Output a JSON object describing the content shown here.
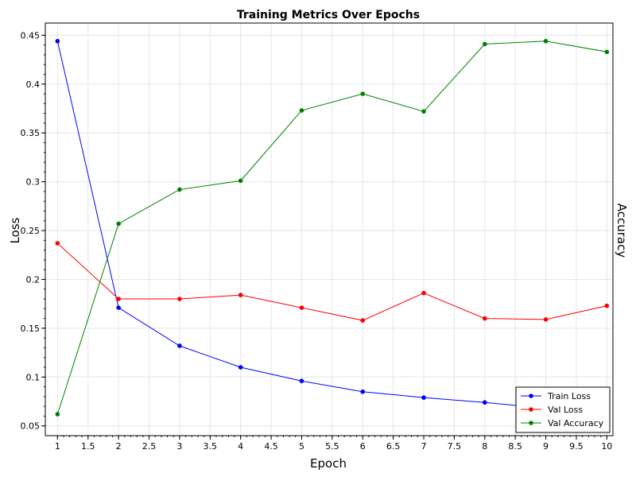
{
  "chart_data": {
    "type": "line",
    "title": "Training Metrics Over Epochs",
    "xlabel": "Epoch",
    "ylabel": "Loss",
    "y2label": "Accuracy",
    "xlim": [
      0.8,
      10.1
    ],
    "ylim": [
      0.04,
      0.4625
    ],
    "xticks": [
      1,
      1.5,
      2,
      2.5,
      3,
      3.5,
      4,
      4.5,
      5,
      5.5,
      6,
      6.5,
      7,
      7.5,
      8,
      8.5,
      9,
      9.5,
      10
    ],
    "xtick_labels": [
      "1",
      "1.5",
      "2",
      "2.5",
      "3",
      "3.5",
      "4",
      "4.5",
      "5",
      "5.5",
      "6",
      "6.5",
      "7",
      "7.5",
      "8",
      "8.5",
      "9",
      "9.5",
      "10"
    ],
    "yticks": [
      0.05,
      0.1,
      0.15,
      0.2,
      0.25,
      0.3,
      0.35,
      0.4,
      0.45
    ],
    "ytick_labels": [
      "0.05",
      "0.1",
      "0.15",
      "0.2",
      "0.25",
      "0.3",
      "0.35",
      "0.4",
      "0.45"
    ],
    "grid": true,
    "legend_position": "bottom-right",
    "x": [
      1,
      2,
      3,
      4,
      5,
      6,
      7,
      8,
      9,
      10
    ],
    "series": [
      {
        "name": "Train Loss",
        "color": "#0000ff",
        "values": [
          0.444,
          0.171,
          0.132,
          0.11,
          0.096,
          0.085,
          0.079,
          0.074,
          0.068,
          0.065
        ]
      },
      {
        "name": "Val Loss",
        "color": "#ff0000",
        "values": [
          0.237,
          0.18,
          0.18,
          0.184,
          0.171,
          0.158,
          0.186,
          0.16,
          0.159,
          0.173
        ]
      },
      {
        "name": "Val Accuracy",
        "color": "#008000",
        "values": [
          0.062,
          0.257,
          0.292,
          0.301,
          0.373,
          0.39,
          0.372,
          0.441,
          0.444,
          0.433
        ]
      }
    ]
  }
}
